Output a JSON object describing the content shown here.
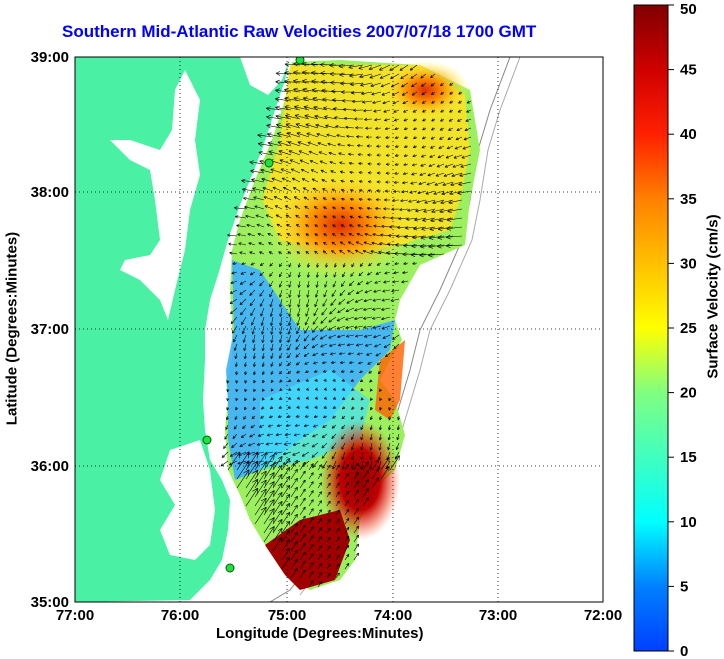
{
  "title": "Southern Mid-Atlantic Raw Velocities 2007/07/18 1700 GMT",
  "xlabel": "Longitude (Degrees:Minutes)",
  "ylabel": "Latitude (Degrees:Minutes)",
  "colorbar_label": "Surface Velocity (cm/s)",
  "x_ticks": [
    "77:00",
    "76:00",
    "75:00",
    "74:00",
    "73:00",
    "72:00"
  ],
  "y_ticks": [
    "39:00",
    "38:00",
    "37:00",
    "36:00",
    "35:00"
  ],
  "colorbar_ticks": [
    "0",
    "5",
    "10",
    "15",
    "20",
    "25",
    "30",
    "35",
    "40",
    "45",
    "50"
  ],
  "colors": {
    "land": "#4af0a4",
    "title": "#0000ff"
  },
  "chart_data": {
    "type": "heatmap",
    "title": "Southern Mid-Atlantic Raw Velocities 2007/07/18 1700 GMT",
    "xlabel": "Longitude (Degrees:Minutes)",
    "ylabel": "Latitude (Degrees:Minutes)",
    "xlim": [
      "77:00",
      "72:00"
    ],
    "ylim": [
      "35:00",
      "39:00"
    ],
    "colorbar": {
      "label": "Surface Velocity (cm/s)",
      "range": [
        0,
        50
      ]
    },
    "grid": true
  }
}
